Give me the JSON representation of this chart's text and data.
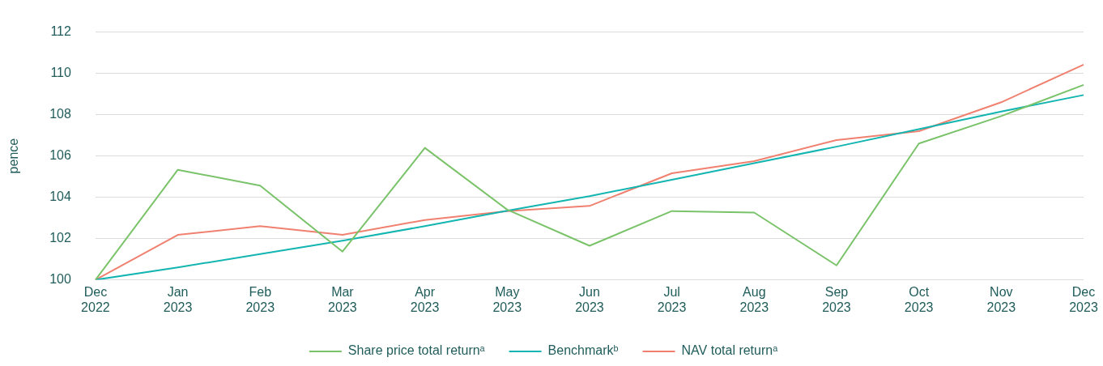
{
  "chart_data": {
    "type": "line",
    "ylabel": "pence",
    "categories": [
      "Dec 2022",
      "Jan 2023",
      "Feb 2023",
      "Mar 2023",
      "Apr 2023",
      "May 2023",
      "Jun 2023",
      "Jul 2023",
      "Aug 2023",
      "Sep 2023",
      "Oct 2023",
      "Nov 2023",
      "Dec 2023"
    ],
    "series": [
      {
        "name": "Share price total returnᵃ",
        "color": "#7ac36a",
        "values": [
          100,
          105.33,
          104.56,
          101.37,
          106.39,
          103.4,
          101.65,
          103.33,
          103.26,
          100.7,
          106.6,
          107.93,
          109.44
        ]
      },
      {
        "name": "Benchmarkᵇ",
        "color": "#13b5b1",
        "values": [
          100,
          100.6,
          101.25,
          101.9,
          102.6,
          103.35,
          104.05,
          104.85,
          105.65,
          106.45,
          107.3,
          108.15,
          108.95
        ]
      },
      {
        "name": "NAV total returnᵃ",
        "color": "#f0806f",
        "values": [
          100,
          102.18,
          102.6,
          102.18,
          102.9,
          103.33,
          103.58,
          105.16,
          105.75,
          106.77,
          107.2,
          108.6,
          110.42
        ]
      }
    ],
    "ylim": [
      100,
      112
    ],
    "yticks": [
      100,
      102,
      104,
      106,
      108,
      110,
      112
    ],
    "grid": "y",
    "legend": "bottom",
    "marker": "none",
    "line_style": "solid"
  }
}
